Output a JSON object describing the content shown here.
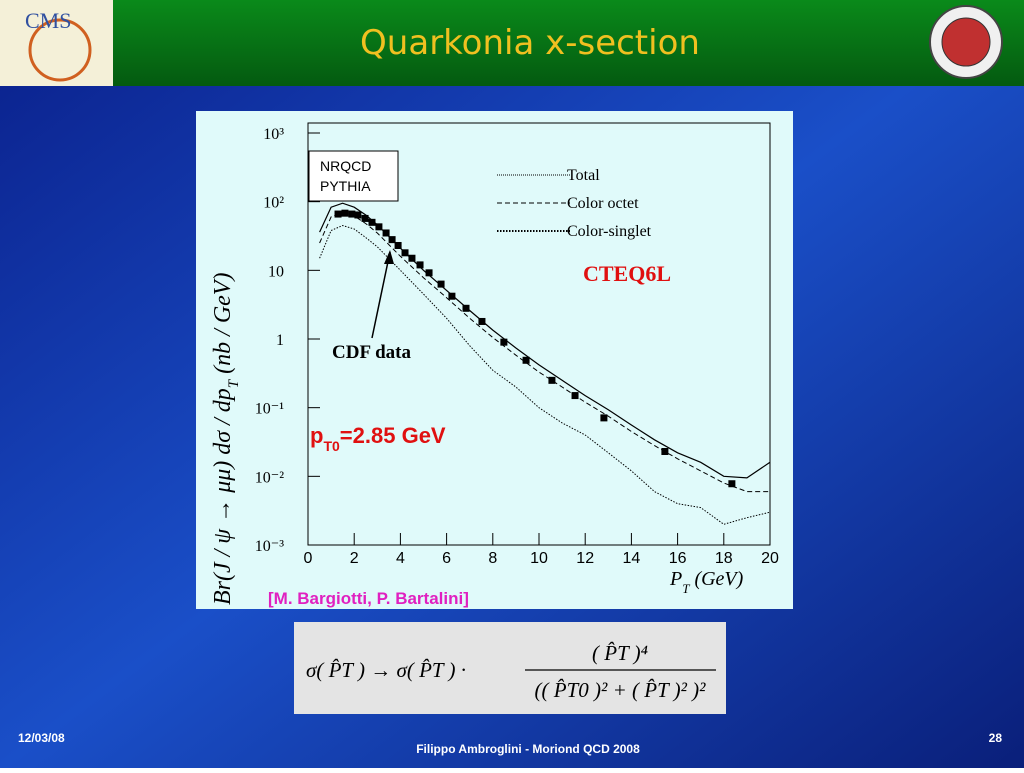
{
  "header": {
    "title": "Quarkonia x-section",
    "logo_text": "CMS"
  },
  "footer": {
    "date": "12/03/08",
    "author": "Filippo Ambroglini - Moriond QCD 2008",
    "page": "28"
  },
  "chart_data": {
    "type": "line",
    "ylabel": [
      "Br(J / ψ → μμ) dσ / dp",
      "T",
      " (nb / GeV)"
    ],
    "xlabel": [
      "P",
      "T",
      " (GeV)"
    ],
    "log_y": true,
    "xlim": [
      0,
      20
    ],
    "xticks": [
      0,
      2,
      4,
      6,
      8,
      10,
      12,
      14,
      16,
      18,
      20
    ],
    "ylim": [
      0.001,
      1000
    ],
    "yticks": [
      {
        "value": 1000,
        "label": "10³"
      },
      {
        "value": 100,
        "label": "10²"
      },
      10,
      1,
      {
        "value": 0.1,
        "label": "10⁻¹"
      },
      {
        "value": 0.01,
        "label": "10⁻²"
      },
      {
        "value": 0.001,
        "label": "10⁻³"
      }
    ],
    "legend": "top-right",
    "series": [
      {
        "name": "Total",
        "color": "#000000",
        "style": "solid",
        "x": [
          0.5,
          1,
          1.5,
          2,
          2.5,
          3,
          4,
          5,
          6,
          7,
          8,
          9,
          10,
          11,
          12,
          13,
          14,
          15,
          16,
          17,
          18,
          19,
          20
        ],
        "values": [
          36,
          83,
          95,
          83,
          64,
          46,
          21,
          10,
          5.1,
          2.6,
          1.35,
          0.74,
          0.42,
          0.25,
          0.15,
          0.093,
          0.056,
          0.034,
          0.022,
          0.016,
          0.01,
          0.0095,
          0.016
        ]
      },
      {
        "name": "Color octet",
        "color": "#000000",
        "style": "dashed",
        "x": [
          0.5,
          1,
          1.5,
          2,
          2.5,
          3,
          4,
          5,
          6,
          7,
          8,
          9,
          10,
          11,
          12,
          13,
          14,
          15,
          16,
          17,
          18,
          19,
          20
        ],
        "values": [
          25,
          60,
          70,
          62,
          48,
          35,
          16,
          7.8,
          4,
          2,
          1.05,
          0.58,
          0.33,
          0.2,
          0.12,
          0.075,
          0.045,
          0.028,
          0.018,
          0.012,
          0.008,
          0.006,
          0.006
        ]
      },
      {
        "name": "Color-singlet",
        "color": "#000000",
        "style": "dotted",
        "x": [
          0.5,
          1,
          1.5,
          2,
          2.5,
          3,
          4,
          5,
          6,
          7,
          8,
          9,
          10,
          11,
          12,
          13,
          14,
          15,
          16,
          17,
          18,
          19,
          20
        ],
        "values": [
          15,
          38,
          45,
          40,
          30,
          22,
          10,
          4.5,
          2,
          0.8,
          0.35,
          0.2,
          0.1,
          0.06,
          0.04,
          0.022,
          0.012,
          0.006,
          0.004,
          0.0035,
          0.002,
          0.0025,
          0.003
        ]
      },
      {
        "name": "CDF data",
        "color": "#000000",
        "style": "markers",
        "x": [
          1.3,
          1.6,
          1.9,
          2.16,
          2.47,
          2.77,
          3.07,
          3.38,
          3.64,
          3.9,
          4.2,
          4.5,
          4.85,
          5.24,
          5.76,
          6.23,
          6.84,
          7.53,
          8.48,
          9.44,
          10.56,
          11.56,
          12.81,
          15.45,
          18.35
        ],
        "values": [
          66,
          68,
          66,
          64,
          57,
          50,
          43,
          35,
          28,
          23,
          18,
          15,
          12,
          9.2,
          6.3,
          4.2,
          2.8,
          1.8,
          0.9,
          0.49,
          0.25,
          0.15,
          0.071,
          0.023,
          0.0078
        ]
      }
    ],
    "annotations": {
      "model": [
        "NRQCD",
        "PYTHIA"
      ],
      "pdf": "CTEQ6L",
      "pt0": [
        "p",
        "T0",
        "=2.85 GeV"
      ],
      "citation": "[M. Bargiotti, P. Bartalini]"
    }
  },
  "formula": {
    "lhs": "σ( P̂T ) → σ( P̂T ) ·",
    "numerator": "( P̂T )⁴",
    "denominator": "(( P̂T0 )² + ( P̂T )² )²"
  }
}
